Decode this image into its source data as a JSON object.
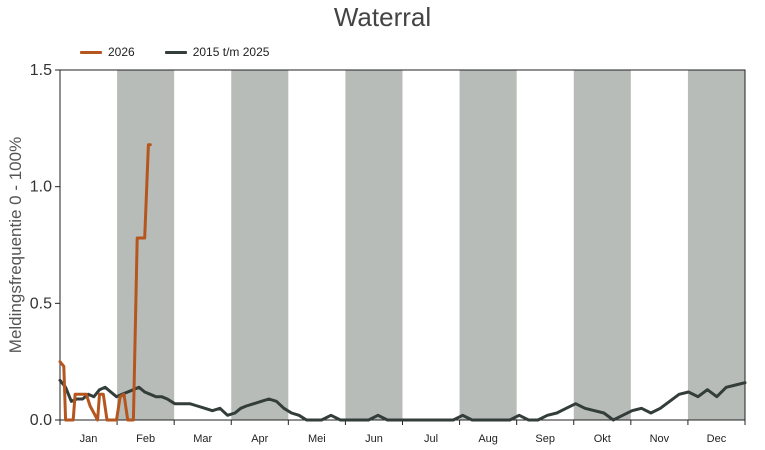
{
  "chart_data": {
    "type": "line",
    "title": "Waterral",
    "ylabel": "Meldingsfrequentie 0 - 100%",
    "xlabel": "",
    "ylim": [
      0,
      1.5
    ],
    "yticks": [
      "0.0",
      "0.5",
      "1.0",
      "1.5"
    ],
    "months": [
      "Jan",
      "Feb",
      "Mar",
      "Apr",
      "Mei",
      "Jun",
      "Jul",
      "Aug",
      "Sep",
      "Okt",
      "Nov",
      "Dec"
    ],
    "shaded_months": [
      2,
      4,
      6,
      8,
      10,
      12
    ],
    "colors": {
      "shade": "#b8bcb8",
      "s2026": "#b5561e",
      "hist": "#333d3a"
    },
    "series": [
      {
        "name": "2026",
        "x": [
          1,
          3,
          4,
          8,
          9,
          15,
          17,
          21,
          22,
          24,
          26,
          31,
          33,
          35,
          37,
          38,
          40,
          42,
          44,
          46,
          48,
          49
        ],
        "y": [
          0.25,
          0.23,
          0.0,
          0.0,
          0.11,
          0.11,
          0.06,
          0.0,
          0.11,
          0.11,
          0.0,
          0.0,
          0.1,
          0.11,
          0.0,
          0.0,
          0.0,
          0.78,
          0.78,
          0.78,
          1.18,
          1.18
        ]
      },
      {
        "name": "2015 t/m 2025",
        "x": [
          1,
          4,
          7,
          10,
          13,
          16,
          19,
          22,
          25,
          28,
          31,
          34,
          37,
          40,
          43,
          46,
          49,
          52,
          55,
          58,
          62,
          66,
          70,
          74,
          78,
          82,
          86,
          90,
          94,
          97,
          100,
          104,
          108,
          112,
          116,
          120,
          124,
          128,
          132,
          136,
          140,
          145,
          150,
          155,
          160,
          165,
          170,
          175,
          180,
          185,
          190,
          195,
          200,
          205,
          210,
          215,
          220,
          225,
          230,
          235,
          240,
          245,
          250,
          255,
          260,
          265,
          270,
          275,
          280,
          285,
          290,
          295,
          300,
          305,
          310,
          315,
          320,
          325,
          330,
          335,
          340,
          345,
          350,
          355,
          360,
          365
        ],
        "y": [
          0.17,
          0.14,
          0.08,
          0.09,
          0.09,
          0.11,
          0.1,
          0.13,
          0.14,
          0.12,
          0.1,
          0.11,
          0.12,
          0.13,
          0.14,
          0.12,
          0.11,
          0.1,
          0.1,
          0.09,
          0.07,
          0.07,
          0.07,
          0.06,
          0.05,
          0.04,
          0.05,
          0.02,
          0.03,
          0.05,
          0.06,
          0.07,
          0.08,
          0.09,
          0.08,
          0.05,
          0.03,
          0.02,
          0.0,
          0.0,
          0.0,
          0.02,
          0.0,
          0.0,
          0.0,
          0.0,
          0.02,
          0.0,
          0.0,
          0.0,
          0.0,
          0.0,
          0.0,
          0.0,
          0.0,
          0.02,
          0.0,
          0.0,
          0.0,
          0.0,
          0.0,
          0.02,
          0.0,
          0.0,
          0.02,
          0.03,
          0.05,
          0.07,
          0.05,
          0.04,
          0.03,
          0.0,
          0.02,
          0.04,
          0.05,
          0.03,
          0.05,
          0.08,
          0.11,
          0.12,
          0.1,
          0.13,
          0.1,
          0.14,
          0.15,
          0.16
        ]
      }
    ]
  }
}
